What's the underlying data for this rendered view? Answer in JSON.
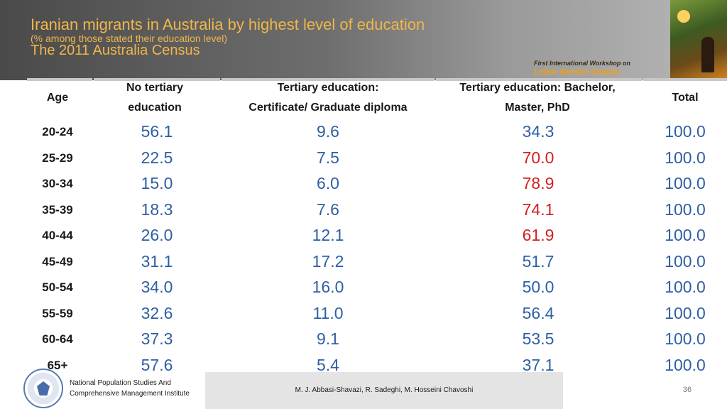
{
  "title": {
    "line1": "Iranian migrants in Australia by highest level of education",
    "line2": "(% among those stated their education level)",
    "line3": "The 2011 Australia Census"
  },
  "workshop": {
    "line1": "First International Workshop on",
    "line2": "Labor Market Studies"
  },
  "table": {
    "headers": {
      "age": "Age",
      "no_tertiary_1": "No tertiary",
      "no_tertiary_2": "education",
      "tertiary_cert_1": "Tertiary education:",
      "tertiary_cert_2": "Certificate/ Graduate diploma",
      "tertiary_bach_1": "Tertiary education: Bachelor,",
      "tertiary_bach_2": "Master, PhD",
      "total": "Total"
    },
    "rows": [
      {
        "age": "20-24",
        "no_tertiary": "56.1",
        "certificate": "9.6",
        "bachelor": "34.3",
        "total": "100.0",
        "highlight": false
      },
      {
        "age": "25-29",
        "no_tertiary": "22.5",
        "certificate": "7.5",
        "bachelor": "70.0",
        "total": "100.0",
        "highlight": true
      },
      {
        "age": "30-34",
        "no_tertiary": "15.0",
        "certificate": "6.0",
        "bachelor": "78.9",
        "total": "100.0",
        "highlight": true
      },
      {
        "age": "35-39",
        "no_tertiary": "18.3",
        "certificate": "7.6",
        "bachelor": "74.1",
        "total": "100.0",
        "highlight": true
      },
      {
        "age": "40-44",
        "no_tertiary": "26.0",
        "certificate": "12.1",
        "bachelor": "61.9",
        "total": "100.0",
        "highlight": true
      },
      {
        "age": "45-49",
        "no_tertiary": "31.1",
        "certificate": "17.2",
        "bachelor": "51.7",
        "total": "100.0",
        "highlight": false
      },
      {
        "age": "50-54",
        "no_tertiary": "34.0",
        "certificate": "16.0",
        "bachelor": "50.0",
        "total": "100.0",
        "highlight": false
      },
      {
        "age": "55-59",
        "no_tertiary": "32.6",
        "certificate": "11.0",
        "bachelor": "56.4",
        "total": "100.0",
        "highlight": false
      },
      {
        "age": "60-64",
        "no_tertiary": "37.3",
        "certificate": "9.1",
        "bachelor": "53.5",
        "total": "100.0",
        "highlight": false
      },
      {
        "age": "65+",
        "no_tertiary": "57.6",
        "certificate": "5.4",
        "bachelor": "37.1",
        "total": "100.0",
        "highlight": false
      }
    ]
  },
  "footer": {
    "institute_line1": "National Population Studies And",
    "institute_line2": "Comprehensive Management Institute",
    "authors": "M. J. Abbasi-Shavazi, R. Sadeghi, M. Hosseini Chavoshi",
    "page": "36"
  },
  "colors": {
    "title": "#f0b64a",
    "value": "#2e5fa3",
    "highlight": "#d42020"
  }
}
